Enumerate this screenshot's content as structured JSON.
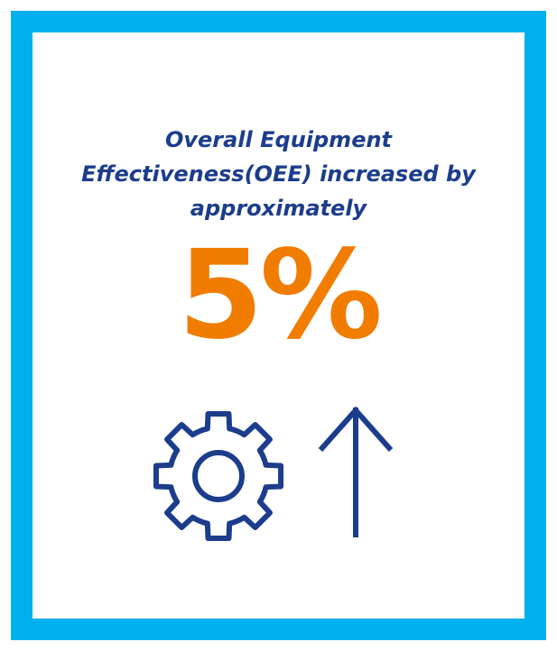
{
  "headline": {
    "line1": "Overall Equipment",
    "line2": "Effectiveness(OEE) increased by",
    "line3": "approximately"
  },
  "metric": {
    "value": "5%"
  },
  "icons": {
    "gear": "gear-icon",
    "arrow": "arrow-up-icon"
  },
  "colors": {
    "border": "#00b0ee",
    "text": "#1c3d8c",
    "accent": "#f07c00"
  }
}
